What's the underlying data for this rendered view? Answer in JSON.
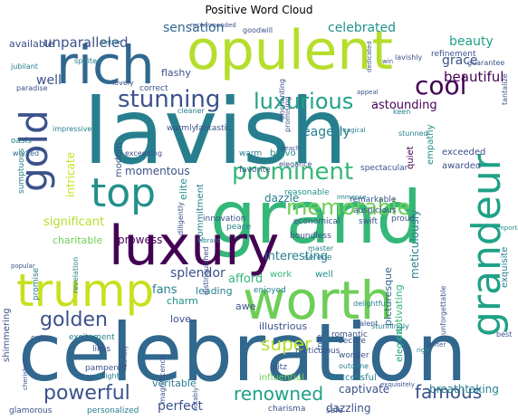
{
  "title": "Positive Word Cloud",
  "colors": {
    "dark_purple": "#440154",
    "purple": "#472d7b",
    "indigo": "#3b528b",
    "slate_blue": "#31688e",
    "teal_blue": "#277f8e",
    "teal": "#21918c",
    "sea_green": "#1fa187",
    "green": "#35b779",
    "light_green": "#6ece58",
    "lime": "#b5de2b",
    "yellow_green": "#c8e020"
  },
  "words": [
    {
      "text": "lavish",
      "size": 100,
      "color": "teal_blue"
    },
    {
      "text": "celebration",
      "size": 88,
      "color": "slate_blue"
    },
    {
      "text": "grand",
      "size": 80,
      "color": "green"
    },
    {
      "text": "worth",
      "size": 58,
      "color": "light_green"
    },
    {
      "text": "opulent",
      "size": 60,
      "color": "lime"
    },
    {
      "text": "luxury",
      "size": 60,
      "color": "dark_purple"
    },
    {
      "text": "trump",
      "size": 50,
      "color": "yellow_green"
    },
    {
      "text": "rich",
      "size": 58,
      "color": "slate_blue"
    },
    {
      "text": "top",
      "size": 44,
      "color": "teal"
    },
    {
      "text": "gold",
      "size": 42,
      "color": "indigo"
    },
    {
      "text": "grandeur",
      "size": 44,
      "color": "sea_green"
    },
    {
      "text": "stunning",
      "size": 26,
      "color": "indigo"
    },
    {
      "text": "luxurious",
      "size": 24,
      "color": "sea_green"
    },
    {
      "text": "cool",
      "size": 28,
      "color": "dark_purple"
    },
    {
      "text": "prominent",
      "size": 26,
      "color": "green"
    },
    {
      "text": "memorable",
      "size": 24,
      "color": "light_green"
    },
    {
      "text": "golden",
      "size": 22,
      "color": "indigo"
    },
    {
      "text": "powerful",
      "size": 22,
      "color": "indigo"
    },
    {
      "text": "renowned",
      "size": 20,
      "color": "sea_green"
    },
    {
      "text": "famous",
      "size": 20,
      "color": "indigo"
    },
    {
      "text": "super",
      "size": 20,
      "color": "lime"
    },
    {
      "text": "beautiful",
      "size": 15,
      "color": "dark_purple"
    },
    {
      "text": "grace",
      "size": 14,
      "color": "indigo"
    },
    {
      "text": "beauty",
      "size": 14,
      "color": "sea_green"
    },
    {
      "text": "celebrated",
      "size": 14,
      "color": "teal"
    },
    {
      "text": "sensation",
      "size": 14,
      "color": "slate_blue"
    },
    {
      "text": "unparalleled",
      "size": 15,
      "color": "indigo"
    },
    {
      "text": "available",
      "size": 11,
      "color": "indigo"
    },
    {
      "text": "well",
      "size": 14,
      "color": "indigo"
    },
    {
      "text": "eagerly",
      "size": 14,
      "color": "teal_blue"
    },
    {
      "text": "astounding",
      "size": 13,
      "color": "dark_purple"
    },
    {
      "text": "significant",
      "size": 13,
      "color": "lime"
    },
    {
      "text": "interesting",
      "size": 13,
      "color": "teal_blue"
    },
    {
      "text": "splendor",
      "size": 14,
      "color": "indigo"
    },
    {
      "text": "fans",
      "size": 13,
      "color": "teal_blue"
    },
    {
      "text": "charitable",
      "size": 11,
      "color": "light_green"
    },
    {
      "text": "prowess",
      "size": 12,
      "color": "dark_purple"
    },
    {
      "text": "leading",
      "size": 11,
      "color": "teal_blue"
    },
    {
      "text": "afford",
      "size": 13,
      "color": "green"
    },
    {
      "text": "momentous",
      "size": 12,
      "color": "indigo"
    },
    {
      "text": "dazzle",
      "size": 12,
      "color": "teal_blue"
    },
    {
      "text": "elite",
      "size": 11,
      "color": "teal"
    },
    {
      "text": "commitment",
      "size": 10,
      "color": "teal_blue"
    },
    {
      "text": "intricate",
      "size": 12,
      "color": "yellow_green"
    },
    {
      "text": "work",
      "size": 10,
      "color": "green"
    },
    {
      "text": "modern",
      "size": 10,
      "color": "indigo"
    },
    {
      "text": "meticulously",
      "size": 12,
      "color": "teal_blue"
    },
    {
      "text": "exceeded",
      "size": 10,
      "color": "indigo"
    },
    {
      "text": "awarded",
      "size": 10,
      "color": "indigo"
    },
    {
      "text": "quiet",
      "size": 10,
      "color": "dark_purple"
    },
    {
      "text": "empathy",
      "size": 10,
      "color": "teal"
    },
    {
      "text": "picturesque",
      "size": 11,
      "color": "slate_blue"
    },
    {
      "text": "captivating",
      "size": 11,
      "color": "green"
    },
    {
      "text": "exquisite",
      "size": 10,
      "color": "teal_blue"
    },
    {
      "text": "breathtaking",
      "size": 12,
      "color": "teal_blue"
    },
    {
      "text": "captivate",
      "size": 12,
      "color": "indigo"
    },
    {
      "text": "dazzling",
      "size": 12,
      "color": "indigo"
    },
    {
      "text": "perfect",
      "size": 14,
      "color": "indigo"
    },
    {
      "text": "veritable",
      "size": 11,
      "color": "teal_blue"
    },
    {
      "text": "charm",
      "size": 11,
      "color": "teal"
    },
    {
      "text": "love",
      "size": 11,
      "color": "indigo"
    },
    {
      "text": "awe",
      "size": 11,
      "color": "indigo"
    },
    {
      "text": "illustrious",
      "size": 11,
      "color": "indigo"
    },
    {
      "text": "elegant",
      "size": 10,
      "color": "sea_green"
    },
    {
      "text": "flashy",
      "size": 11,
      "color": "indigo"
    },
    {
      "text": "well",
      "size": 10,
      "color": "teal"
    },
    {
      "text": "influential",
      "size": 10,
      "color": "light_green"
    },
    {
      "text": "successful",
      "size": 10,
      "color": "teal_blue"
    },
    {
      "text": "charisma",
      "size": 9,
      "color": "indigo"
    },
    {
      "text": "safe",
      "size": 9,
      "color": "indigo"
    },
    {
      "text": "glamorous",
      "size": 9,
      "color": "indigo"
    },
    {
      "text": "personalized",
      "size": 9,
      "color": "teal_blue"
    },
    {
      "text": "pampered",
      "size": 9,
      "color": "indigo"
    },
    {
      "text": "excitement",
      "size": 9,
      "color": "teal_blue"
    },
    {
      "text": "cute",
      "size": 9,
      "color": "indigo"
    },
    {
      "text": "likes",
      "size": 9,
      "color": "indigo"
    },
    {
      "text": "glitz",
      "size": 9,
      "color": "indigo"
    },
    {
      "text": "meticulous",
      "size": 9,
      "color": "indigo"
    },
    {
      "text": "wonder",
      "size": 9,
      "color": "indigo"
    },
    {
      "text": "outdone",
      "size": 8,
      "color": "teal_blue"
    },
    {
      "text": "romantic",
      "size": 9,
      "color": "indigo"
    },
    {
      "text": "secure",
      "size": 9,
      "color": "indigo"
    },
    {
      "text": "free",
      "size": 9,
      "color": "indigo"
    },
    {
      "text": "enjoyed",
      "size": 9,
      "color": "teal_blue"
    },
    {
      "text": "master",
      "size": 8,
      "color": "teal_blue"
    },
    {
      "text": "serene",
      "size": 9,
      "color": "teal_blue"
    },
    {
      "text": "boundless",
      "size": 9,
      "color": "indigo"
    },
    {
      "text": "economical",
      "size": 9,
      "color": "indigo"
    },
    {
      "text": "swift",
      "size": 9,
      "color": "indigo"
    },
    {
      "text": "reasonable",
      "size": 9,
      "color": "teal"
    },
    {
      "text": "innovation",
      "size": 9,
      "color": "indigo"
    },
    {
      "text": "peace",
      "size": 9,
      "color": "teal_blue"
    },
    {
      "text": "auspicious",
      "size": 9,
      "color": "indigo"
    },
    {
      "text": "remarkable",
      "size": 9,
      "color": "indigo"
    },
    {
      "text": "favorite",
      "size": 9,
      "color": "indigo"
    },
    {
      "text": "warm",
      "size": 9,
      "color": "teal_blue"
    },
    {
      "text": "warmly",
      "size": 9,
      "color": "indigo"
    },
    {
      "text": "fantastic",
      "size": 9,
      "color": "indigo"
    },
    {
      "text": "bravo",
      "size": 10,
      "color": "teal"
    },
    {
      "text": "elegance",
      "size": 8,
      "color": "indigo"
    },
    {
      "text": "spectacular",
      "size": 9,
      "color": "indigo"
    },
    {
      "text": "correct",
      "size": 9,
      "color": "indigo"
    },
    {
      "text": "paradise",
      "size": 8,
      "color": "indigo"
    },
    {
      "text": "oasis",
      "size": 9,
      "color": "teal_blue"
    },
    {
      "text": "worked",
      "size": 8,
      "color": "slate_blue"
    },
    {
      "text": "jubilant",
      "size": 8,
      "color": "teal_blue"
    },
    {
      "text": "spirited",
      "size": 8,
      "color": "teal_blue"
    },
    {
      "text": "lovely",
      "size": 8,
      "color": "indigo"
    },
    {
      "text": "recommended",
      "size": 7,
      "color": "indigo"
    },
    {
      "text": "goodwill",
      "size": 8,
      "color": "indigo"
    },
    {
      "text": "refinement",
      "size": 9,
      "color": "indigo"
    },
    {
      "text": "guarantee",
      "size": 8,
      "color": "indigo"
    },
    {
      "text": "appeal",
      "size": 7,
      "color": "indigo"
    },
    {
      "text": "lavishly",
      "size": 8,
      "color": "indigo"
    },
    {
      "text": "proud",
      "size": 9,
      "color": "indigo"
    },
    {
      "text": "keen",
      "size": 8,
      "color": "teal_blue"
    },
    {
      "text": "stunned",
      "size": 8,
      "color": "teal_blue"
    },
    {
      "text": "tantalize",
      "size": 8,
      "color": "indigo"
    },
    {
      "text": "revelation",
      "size": 8,
      "color": "teal_blue"
    },
    {
      "text": "promise",
      "size": 9,
      "color": "teal_blue"
    },
    {
      "text": "sumptuous",
      "size": 9,
      "color": "teal_blue"
    },
    {
      "text": "shimmering",
      "size": 10,
      "color": "indigo"
    },
    {
      "text": "distinguished",
      "size": 8,
      "color": "indigo"
    },
    {
      "text": "diligently",
      "size": 8,
      "color": "indigo"
    },
    {
      "text": "delightful",
      "size": 8,
      "color": "teal_blue"
    },
    {
      "text": "talent",
      "size": 8,
      "color": "indigo"
    },
    {
      "text": "best",
      "size": 8,
      "color": "indigo"
    },
    {
      "text": "right",
      "size": 7,
      "color": "teal_blue"
    },
    {
      "text": "softer",
      "size": 7,
      "color": "indigo"
    },
    {
      "text": "unforgettable",
      "size": 8,
      "color": "indigo"
    },
    {
      "text": "stunningly",
      "size": 8,
      "color": "teal_blue"
    },
    {
      "text": "exquisitely",
      "size": 7,
      "color": "indigo"
    },
    {
      "text": "magnificence",
      "size": 8,
      "color": "indigo"
    },
    {
      "text": "variety",
      "size": 7,
      "color": "indigo"
    },
    {
      "text": "cherished",
      "size": 7,
      "color": "indigo"
    },
    {
      "text": "notably",
      "size": 7,
      "color": "indigo"
    },
    {
      "text": "delight",
      "size": 8,
      "color": "teal_blue"
    },
    {
      "text": "popular",
      "size": 7,
      "color": "indigo"
    },
    {
      "text": "vibrant",
      "size": 7,
      "color": "teal_blue"
    },
    {
      "text": "important",
      "size": 7,
      "color": "teal"
    },
    {
      "text": "better",
      "size": 7,
      "color": "teal_blue"
    },
    {
      "text": "cleaner",
      "size": 8,
      "color": "teal_blue"
    },
    {
      "text": "peach",
      "size": 7,
      "color": "indigo"
    },
    {
      "text": "impressive",
      "size": 8,
      "color": "teal_blue"
    },
    {
      "text": "exceeding",
      "size": 8,
      "color": "indigo"
    },
    {
      "text": "magical",
      "size": 7,
      "color": "teal_blue"
    },
    {
      "text": "immense",
      "size": 7,
      "color": "teal_blue"
    },
    {
      "text": "enchanting",
      "size": 8,
      "color": "indigo"
    },
    {
      "text": "promising",
      "size": 8,
      "color": "indigo"
    },
    {
      "text": "dedicated",
      "size": 7,
      "color": "indigo"
    },
    {
      "text": "win",
      "size": 7,
      "color": "indigo"
    }
  ]
}
